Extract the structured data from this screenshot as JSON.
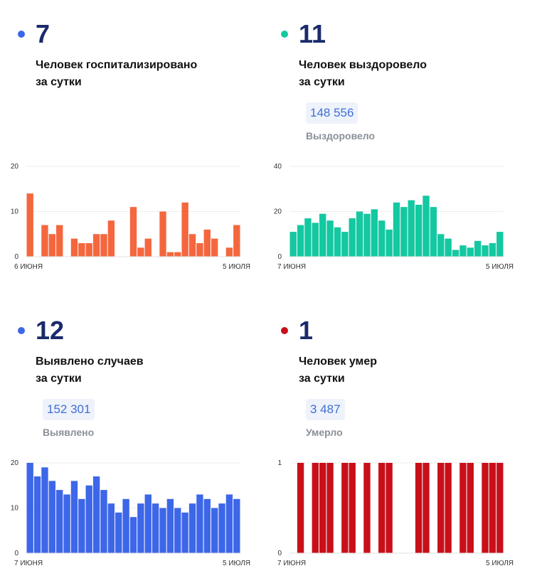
{
  "panels": [
    {
      "value": "7",
      "label_line1": "Человек госпитализировано",
      "label_line2": "за сутки",
      "dot_color": "#3d67e8",
      "total": "",
      "total_label": ""
    },
    {
      "value": "11",
      "label_line1": "Человек выздоровело",
      "label_line2": "за сутки",
      "dot_color": "#14c8a1",
      "total": "148 556",
      "total_label": "Выздоровело"
    },
    {
      "value": "12",
      "label_line1": "Выявлено случаев",
      "label_line2": "за сутки",
      "dot_color": "#3d67e8",
      "total": "152 301",
      "total_label": "Выявлено"
    },
    {
      "value": "1",
      "label_line1": "Человек умер",
      "label_line2": "за сутки",
      "dot_color": "#c8101a",
      "total": "3 487",
      "total_label": "Умерло"
    }
  ],
  "chart_data": [
    {
      "type": "bar",
      "color": "#f4673e",
      "ylim": [
        0,
        20
      ],
      "yticks": [
        "0",
        "10",
        "20"
      ],
      "x_start_label": "6 июня",
      "x_end_label": "5 июля",
      "values": [
        14,
        0,
        7,
        5,
        7,
        0,
        4,
        3,
        3,
        5,
        5,
        8,
        0,
        0,
        11,
        2,
        4,
        0,
        10,
        1,
        1,
        12,
        5,
        3,
        6,
        4,
        0,
        2,
        7
      ]
    },
    {
      "type": "bar",
      "color": "#14c8a1",
      "ylim": [
        0,
        40
      ],
      "yticks": [
        "0",
        "20",
        "40"
      ],
      "x_start_label": "7 июня",
      "x_end_label": "5 июля",
      "values": [
        11,
        14,
        17,
        15,
        19,
        16,
        13,
        11,
        17,
        20,
        19,
        21,
        16,
        12,
        24,
        22,
        25,
        23,
        27,
        22,
        10,
        8,
        3,
        5,
        4,
        7,
        5,
        6,
        11
      ]
    },
    {
      "type": "bar",
      "color": "#3d67e8",
      "ylim": [
        0,
        20
      ],
      "yticks": [
        "0",
        "10",
        "20"
      ],
      "x_start_label": "7 июня",
      "x_end_label": "5 июля",
      "values": [
        20,
        17,
        19,
        16,
        14,
        13,
        16,
        12,
        15,
        17,
        14,
        11,
        9,
        12,
        8,
        11,
        13,
        11,
        10,
        12,
        10,
        9,
        11,
        13,
        12,
        10,
        11,
        13,
        12
      ]
    },
    {
      "type": "bar",
      "color": "#c8101a",
      "ylim": [
        0,
        1
      ],
      "yticks": [
        "0",
        "1"
      ],
      "x_start_label": "7 июня",
      "x_end_label": "5 июля",
      "values": [
        0,
        1,
        0,
        1,
        1,
        1,
        0,
        1,
        1,
        0,
        1,
        0,
        1,
        1,
        0,
        0,
        0,
        1,
        1,
        0,
        1,
        1,
        0,
        1,
        1,
        0,
        1,
        1,
        1
      ]
    }
  ]
}
